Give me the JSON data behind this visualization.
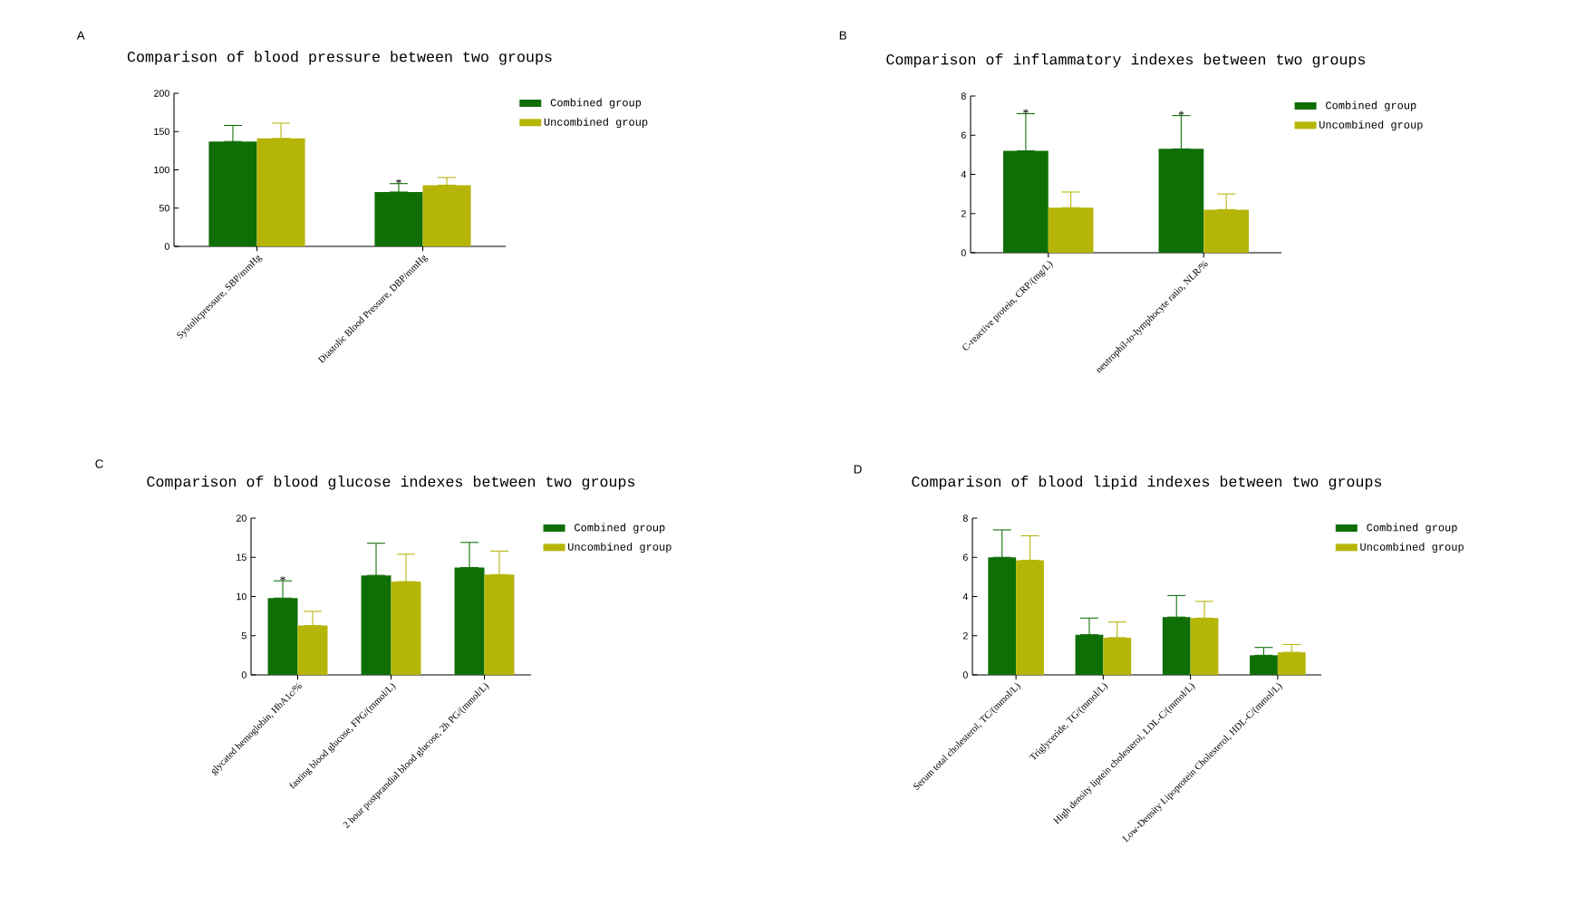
{
  "chart_data": [
    {
      "type": "bar",
      "title": "Comparison of blood pressure between two groups",
      "annotations": [
        "A"
      ],
      "categories": [
        "Systolicpressure, SBP/mmHg",
        "Diastolic Blood Pressure, DBP/mmHg"
      ],
      "series": [
        {
          "name": "Combined group",
          "color": "#0f6e05",
          "values": [
            137,
            71
          ],
          "errors": [
            [
              137,
              158
            ],
            [
              71,
              82
            ]
          ],
          "value_labels": [
            null,
            "*"
          ]
        },
        {
          "name": "Uncombined group",
          "color": "#b5b508",
          "values": [
            141,
            80
          ],
          "errors": [
            [
              141,
              161
            ],
            [
              80,
              90
            ]
          ]
        }
      ],
      "ylim": [
        0,
        200
      ],
      "yticks": [
        0,
        50,
        100,
        150,
        200
      ],
      "legend": "right"
    },
    {
      "type": "bar",
      "title": "Comparison of inflammatory indexes between two groups",
      "annotations": [
        "B"
      ],
      "categories": [
        "C-reactive protein, CRP/(mg/L)",
        "neutrophil-to-lymphocyte ratio, NLR/%"
      ],
      "series": [
        {
          "name": "Combined group",
          "color": "#0f6e05",
          "values": [
            5.2,
            5.3
          ],
          "errors": [
            [
              5.2,
              7.1
            ],
            [
              5.3,
              7.0
            ]
          ],
          "value_labels": [
            "*",
            "*"
          ]
        },
        {
          "name": "Uncombined group",
          "color": "#b5b508",
          "values": [
            2.3,
            2.2
          ],
          "errors": [
            [
              2.3,
              3.1
            ],
            [
              2.2,
              3.0
            ]
          ]
        }
      ],
      "ylim": [
        0,
        8
      ],
      "yticks": [
        0,
        2,
        4,
        6,
        8
      ],
      "legend": "right"
    },
    {
      "type": "bar",
      "title": "Comparison of blood glucose indexes between two groups",
      "annotations": [
        "C"
      ],
      "categories": [
        "glycated hemoglobin, HbA1c/%",
        "fasting blood glucose, FPG/(mmol/L)",
        "2 hour postprandial blood glucose, 2h PG/(mmol/L)"
      ],
      "series": [
        {
          "name": "Combined group",
          "color": "#0f6e05",
          "values": [
            9.8,
            12.7,
            13.7
          ],
          "errors": [
            [
              9.8,
              12.0
            ],
            [
              12.7,
              16.8
            ],
            [
              13.7,
              16.9
            ]
          ],
          "value_labels": [
            "*",
            null,
            null
          ]
        },
        {
          "name": "Uncombined group",
          "color": "#b5b508",
          "values": [
            6.3,
            11.9,
            12.8
          ],
          "errors": [
            [
              6.3,
              8.1
            ],
            [
              11.9,
              15.4
            ],
            [
              12.8,
              15.8
            ]
          ]
        }
      ],
      "ylim": [
        0,
        20
      ],
      "yticks": [
        0,
        5,
        10,
        15,
        20
      ],
      "legend": "right"
    },
    {
      "type": "bar",
      "title": "Comparison of blood lipid indexes between two groups",
      "annotations": [
        "D"
      ],
      "categories": [
        "Serum total cholesterol, TC/(mmol/L)",
        "Triglyceride, TG/(mmol/L)",
        "High density liptein cholesterol, LDL-C/(mmol/L)",
        "Low-Density Lipoprotein Cholesterol, HDL-C/(mmol/L)"
      ],
      "series": [
        {
          "name": "Combined group",
          "color": "#0f6e05",
          "values": [
            6.0,
            2.05,
            2.95,
            1.0
          ],
          "errors": [
            [
              6.0,
              7.4
            ],
            [
              2.05,
              2.9
            ],
            [
              2.95,
              4.05
            ],
            [
              1.0,
              1.4
            ]
          ]
        },
        {
          "name": "Uncombined group",
          "color": "#b5b508",
          "values": [
            5.85,
            1.9,
            2.9,
            1.15
          ],
          "errors": [
            [
              5.85,
              7.1
            ],
            [
              1.9,
              2.7
            ],
            [
              2.9,
              3.75
            ],
            [
              1.15,
              1.55
            ]
          ]
        }
      ],
      "ylim": [
        0,
        8
      ],
      "yticks": [
        0,
        2,
        4,
        6,
        8
      ],
      "legend": "right"
    }
  ]
}
